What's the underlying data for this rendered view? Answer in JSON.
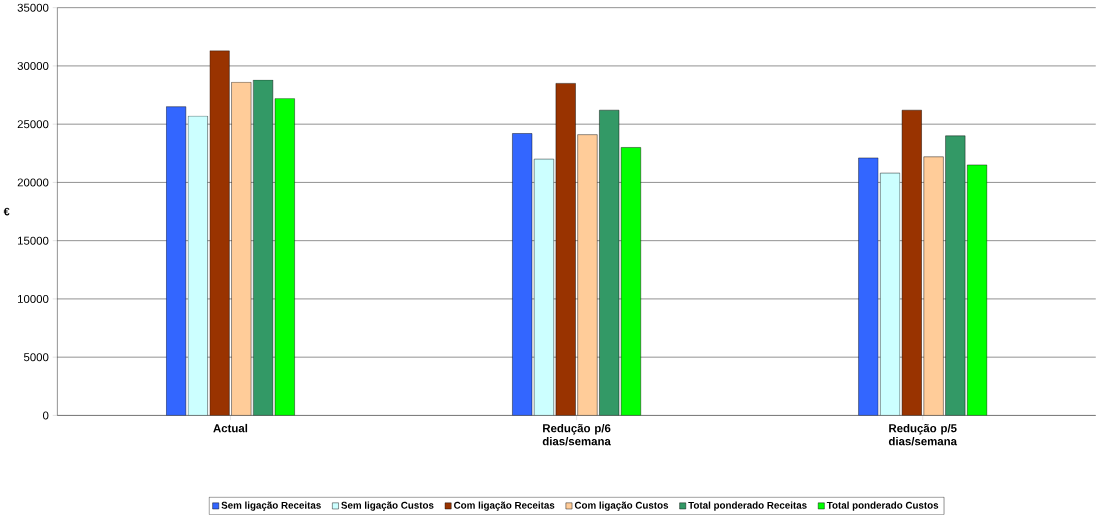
{
  "chart_data": {
    "type": "bar",
    "ylabel": "€",
    "categories": [
      "Actual",
      "Redução p/6 dias/semana",
      "Redução p/5 dias/semana"
    ],
    "series": [
      {
        "name": "Sem ligação Receitas",
        "color": "#3366ff",
        "values": [
          26500,
          24200,
          22100
        ]
      },
      {
        "name": "Sem ligação Custos",
        "color": "#ccffff",
        "values": [
          25700,
          22000,
          20800
        ]
      },
      {
        "name": "Com ligação Receitas",
        "color": "#993300",
        "values": [
          31300,
          28500,
          26200
        ]
      },
      {
        "name": "Com ligação Custos",
        "color": "#ffcc99",
        "values": [
          28600,
          24100,
          22200
        ]
      },
      {
        "name": "Total ponderado Receitas",
        "color": "#339966",
        "values": [
          28800,
          26200,
          24000
        ]
      },
      {
        "name": "Total ponderado Custos",
        "color": "#00ff00",
        "values": [
          27200,
          23000,
          21500
        ]
      }
    ],
    "ylim": [
      0,
      35000
    ],
    "yticks": [
      0,
      5000,
      10000,
      15000,
      20000,
      25000,
      30000,
      35000
    ],
    "grid": "y",
    "legend": "bottom"
  }
}
